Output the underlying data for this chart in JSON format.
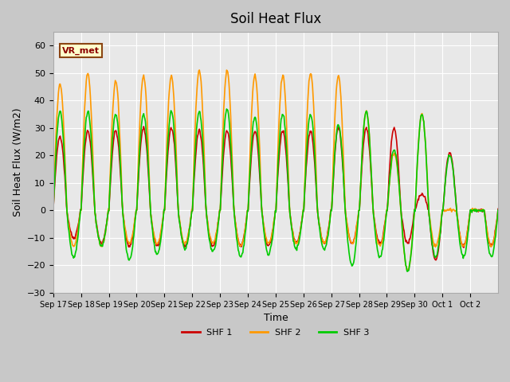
{
  "title": "Soil Heat Flux",
  "ylabel": "Soil Heat Flux (W/m2)",
  "xlabel": "Time",
  "ylim": [
    -30,
    65
  ],
  "yticks": [
    -30,
    -20,
    -10,
    0,
    10,
    20,
    30,
    40,
    50,
    60
  ],
  "legend_labels": [
    "SHF 1",
    "SHF 2",
    "SHF 3"
  ],
  "annotation_text": "VR_met",
  "annotation_color": "#8b0000",
  "annotation_bg": "#ffffcc",
  "annotation_border": "#8b4513",
  "n_days": 16,
  "tick_labels": [
    "Sep 17",
    "Sep 18",
    "Sep 19",
    "Sep 20",
    "Sep 21",
    "Sep 22",
    "Sep 23",
    "Sep 24",
    "Sep 25",
    "Sep 26",
    "Sep 27",
    "Sep 28",
    "Sep 29",
    "Sep 30",
    "Oct 1",
    "Oct 2"
  ],
  "shf1_color": "#cc0000",
  "shf2_color": "#ff9900",
  "shf3_color": "#00cc00",
  "line_width": 1.2,
  "shf1_peaks": [
    27,
    29,
    29,
    30,
    30,
    29,
    29,
    29,
    29,
    29,
    30,
    30,
    30,
    6,
    21,
    0
  ],
  "shf1_nights": [
    10,
    12,
    13,
    13,
    13,
    13,
    13,
    13,
    12,
    12,
    12,
    12,
    12,
    18,
    13,
    13
  ],
  "shf2_peaks": [
    46,
    50,
    47,
    49,
    49,
    51,
    51,
    49,
    49,
    50,
    49,
    36,
    21,
    35,
    0,
    0
  ],
  "shf2_nights": [
    13,
    13,
    12,
    12,
    12,
    12,
    13,
    12,
    12,
    12,
    12,
    13,
    22,
    13,
    13,
    13
  ],
  "shf3_peaks": [
    36,
    36,
    35,
    35,
    36,
    36,
    37,
    34,
    35,
    35,
    31,
    36,
    22,
    35,
    20,
    0
  ],
  "shf3_nights": [
    17,
    13,
    18,
    16,
    14,
    15,
    17,
    16,
    14,
    14,
    20,
    17,
    22,
    17,
    17,
    17
  ]
}
